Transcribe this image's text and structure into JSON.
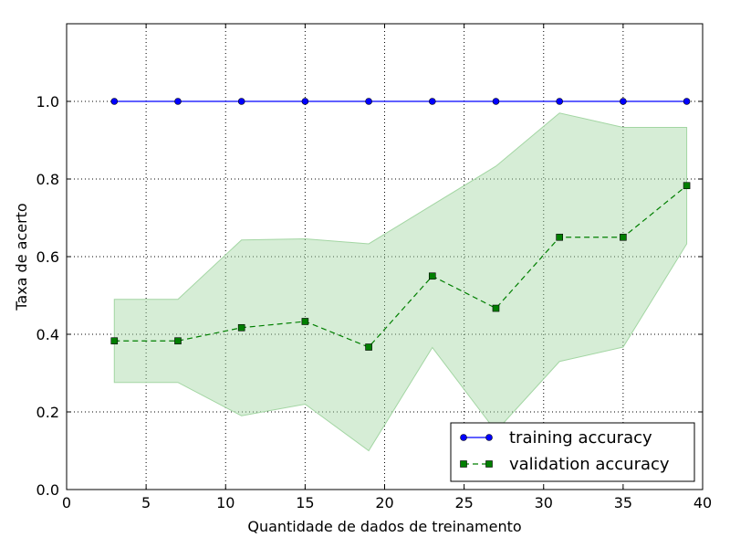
{
  "chart_data": {
    "type": "line",
    "title": "",
    "xlabel": "Quantidade de dados de treinamento",
    "ylabel": "Taxa de acerto",
    "xlim": [
      0,
      40
    ],
    "ylim": [
      0,
      1.2
    ],
    "xticks": [
      0,
      5,
      10,
      15,
      20,
      25,
      30,
      35,
      40
    ],
    "yticks": [
      0.0,
      0.2,
      0.4,
      0.6,
      0.8,
      1.0
    ],
    "ytick_labels": [
      "0.0",
      "0.2",
      "0.4",
      "0.6",
      "0.8",
      "1.0"
    ],
    "grid": true,
    "legend_position": "lower-right",
    "x": [
      3,
      7,
      11,
      15,
      19,
      23,
      27,
      31,
      35,
      39
    ],
    "series": [
      {
        "name": "training accuracy",
        "color": "#0000ff",
        "marker": "circle",
        "linestyle": "solid",
        "values": [
          1.0,
          1.0,
          1.0,
          1.0,
          1.0,
          1.0,
          1.0,
          1.0,
          1.0,
          1.0
        ]
      },
      {
        "name": "validation accuracy",
        "color": "#007f00",
        "marker": "square",
        "linestyle": "dashed",
        "values": [
          0.383,
          0.383,
          0.417,
          0.433,
          0.367,
          0.55,
          0.467,
          0.65,
          0.65,
          0.783
        ],
        "band_lower": [
          0.276,
          0.276,
          0.19,
          0.22,
          0.1,
          0.366,
          0.15,
          0.33,
          0.367,
          0.633
        ],
        "band_upper": [
          0.49,
          0.49,
          0.643,
          0.646,
          0.633,
          0.733,
          0.833,
          0.97,
          0.933,
          0.933
        ],
        "band_color": "#a3d6a3"
      }
    ]
  }
}
